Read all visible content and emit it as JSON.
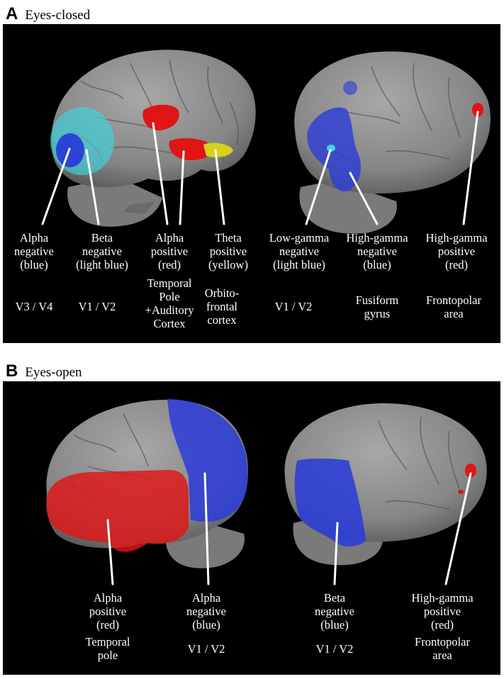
{
  "panel_a": {
    "letter": "A",
    "title": "Eyes-closed",
    "labels": [
      {
        "lines": [
          "Alpha",
          "negative",
          "(blue)"
        ],
        "region": "V3 / V4"
      },
      {
        "lines": [
          "Beta",
          "negative",
          "(light blue)"
        ],
        "region": "V1 / V2"
      },
      {
        "lines": [
          "Alpha",
          "positive",
          "(red)"
        ],
        "region_lines": [
          "Temporal",
          "Pole",
          "+Auditory",
          "Cortex"
        ]
      },
      {
        "lines": [
          "Theta",
          "positive",
          "(yellow)"
        ],
        "region_lines": [
          "Orbito-",
          "frontal",
          "cortex"
        ]
      },
      {
        "lines": [
          "Low-gamma",
          "negative",
          "(light blue)"
        ],
        "region": "V1 / V2"
      },
      {
        "lines": [
          "High-gamma",
          "negative",
          "(blue)"
        ],
        "region_lines": [
          "Fusiform",
          "gyrus"
        ]
      },
      {
        "lines": [
          "High-gamma",
          "positive",
          "(red)"
        ],
        "region_lines": [
          "Frontopolar",
          "area"
        ]
      }
    ]
  },
  "panel_b": {
    "letter": "B",
    "title": "Eyes-open",
    "labels": [
      {
        "lines": [
          "Alpha",
          "positive",
          "(red)"
        ],
        "region_lines": [
          "Temporal",
          "pole"
        ]
      },
      {
        "lines": [
          "Alpha",
          "negative",
          "(blue)"
        ],
        "region": "V1 / V2"
      },
      {
        "lines": [
          "Beta",
          "negative",
          "(blue)"
        ],
        "region": "V1 / V2"
      },
      {
        "lines": [
          "High-gamma",
          "positive",
          "(red)"
        ],
        "region_lines": [
          "Frontopolar",
          "area"
        ]
      }
    ]
  },
  "colors": {
    "background": "#000000",
    "brain": "#8e8e8e",
    "blue": "#2a3cd8",
    "light_blue": "#3fd6e0",
    "red": "#e01515",
    "yellow": "#d6d21c"
  }
}
